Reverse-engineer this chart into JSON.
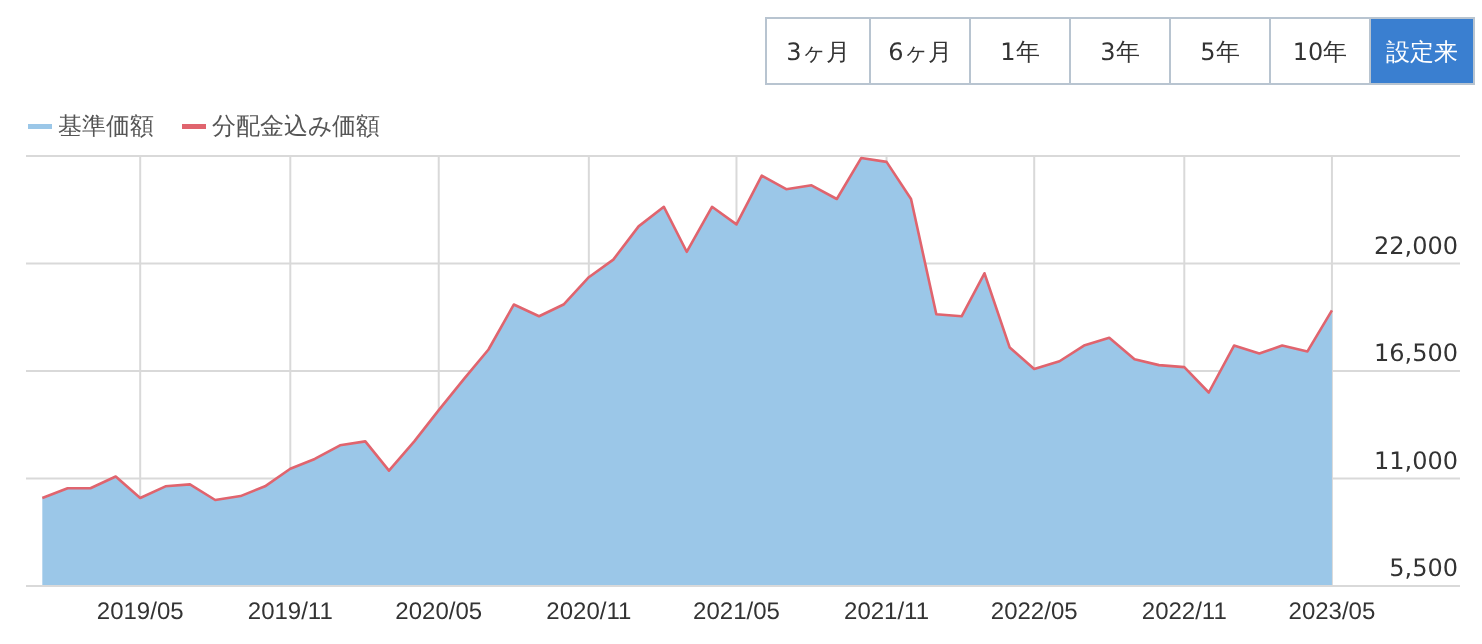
{
  "chart_data": {
    "type": "area",
    "x": [
      "2019-01",
      "2019-02",
      "2019-03",
      "2019-04",
      "2019-05",
      "2019-06",
      "2019-07",
      "2019-08",
      "2019-09",
      "2019-10",
      "2019-11",
      "2019-12",
      "2020-01",
      "2020-02",
      "2020-03",
      "2020-04",
      "2020-05",
      "2020-06",
      "2020-07",
      "2020-08",
      "2020-09",
      "2020-10",
      "2020-11",
      "2020-12",
      "2021-01",
      "2021-02",
      "2021-03",
      "2021-04",
      "2021-05",
      "2021-06",
      "2021-07",
      "2021-08",
      "2021-09",
      "2021-10",
      "2021-11",
      "2021-12",
      "2022-01",
      "2022-02",
      "2022-03",
      "2022-04",
      "2022-05",
      "2022-06",
      "2022-07",
      "2022-08",
      "2022-09",
      "2022-10",
      "2022-11",
      "2022-12",
      "2023-01",
      "2023-02",
      "2023-03",
      "2023-04",
      "2023-05"
    ],
    "series": [
      {
        "name": "基準価額",
        "color": "#9bc7e8",
        "values": [
          10000,
          10500,
          10500,
          11100,
          10000,
          10600,
          10700,
          9900,
          10100,
          10600,
          11500,
          12000,
          12700,
          12900,
          11400,
          12900,
          14500,
          16100,
          17600,
          19900,
          19300,
          19900,
          21300,
          22200,
          23900,
          24900,
          22600,
          24900,
          24000,
          26500,
          25800,
          26000,
          25300,
          27400,
          27200,
          25300,
          19400,
          19300,
          21500,
          17700,
          16600,
          17000,
          17800,
          18200,
          17100,
          16800,
          16700,
          15400,
          17800,
          17400,
          17800,
          17500,
          19600
        ]
      },
      {
        "name": "分配金込み価額",
        "type": "line",
        "color": "#e0646e",
        "values": [
          10000,
          10500,
          10500,
          11100,
          10000,
          10600,
          10700,
          9900,
          10100,
          10600,
          11500,
          12000,
          12700,
          12900,
          11400,
          12900,
          14500,
          16100,
          17600,
          19900,
          19300,
          19900,
          21300,
          22200,
          23900,
          24900,
          22600,
          24900,
          24000,
          26500,
          25800,
          26000,
          25300,
          27400,
          27200,
          25300,
          19400,
          19300,
          21500,
          17700,
          16600,
          17000,
          17800,
          18200,
          17100,
          16800,
          16700,
          15400,
          17800,
          17400,
          17800,
          17500,
          19600
        ]
      }
    ],
    "xlim": [
      "2018-12-12",
      "2023-10-05"
    ],
    "xticks": [
      {
        "value": "2019-05",
        "label": "2019/05"
      },
      {
        "value": "2019-11",
        "label": "2019/11"
      },
      {
        "value": "2020-05",
        "label": "2020/05"
      },
      {
        "value": "2020-11",
        "label": "2020/11"
      },
      {
        "value": "2021-05",
        "label": "2021/05"
      },
      {
        "value": "2021-11",
        "label": "2021/11"
      },
      {
        "value": "2022-05",
        "label": "2022/05"
      },
      {
        "value": "2022-11",
        "label": "2022/11"
      },
      {
        "value": "2023-05",
        "label": "2023/05"
      }
    ],
    "ylim": [
      5500,
      27500
    ],
    "yticks": [
      {
        "value": 5500,
        "label": "5,500"
      },
      {
        "value": 11000,
        "label": "11,000"
      },
      {
        "value": 16500,
        "label": "16,500"
      },
      {
        "value": 22000,
        "label": "22,000"
      },
      {
        "value": 27500,
        "label": null
      }
    ],
    "grid": true,
    "legend": "top left",
    "annotations": [
      "3ヶ月",
      "6ヶ月",
      "1年",
      "3年",
      "5年",
      "10年",
      "設定来"
    ]
  }
}
